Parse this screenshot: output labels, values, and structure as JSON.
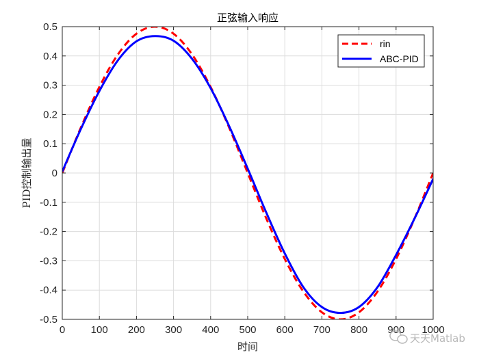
{
  "chart_data": {
    "type": "line",
    "title": "正弦输入响应",
    "xlabel": "时间",
    "ylabel": "PID控制输出量",
    "xlim": [
      0,
      1000
    ],
    "ylim": [
      -0.5,
      0.5
    ],
    "xticks": [
      0,
      100,
      200,
      300,
      400,
      500,
      600,
      700,
      800,
      900,
      1000
    ],
    "yticks": [
      -0.5,
      -0.4,
      -0.3,
      -0.2,
      -0.1,
      0,
      0.1,
      0.2,
      0.3,
      0.4,
      0.5
    ],
    "xtick_labels": [
      "0",
      "100",
      "200",
      "300",
      "400",
      "500",
      "600",
      "700",
      "800",
      "900",
      "1000"
    ],
    "ytick_labels": [
      "-0.5",
      "-0.4",
      "-0.3",
      "-0.2",
      "-0.1",
      "0",
      "0.1",
      "0.2",
      "0.3",
      "0.4",
      "0.5"
    ],
    "grid": true,
    "legend_position": "top-right",
    "series": [
      {
        "name": "rin",
        "color": "#ff0000",
        "style": "dashed",
        "x": [
          0,
          50,
          100,
          150,
          200,
          250,
          300,
          350,
          400,
          450,
          500,
          550,
          600,
          650,
          700,
          750,
          800,
          850,
          900,
          950,
          1000
        ],
        "y": [
          0,
          0.155,
          0.294,
          0.405,
          0.476,
          0.5,
          0.476,
          0.405,
          0.294,
          0.155,
          0,
          -0.155,
          -0.294,
          -0.405,
          -0.476,
          -0.5,
          -0.476,
          -0.405,
          -0.294,
          -0.155,
          0
        ]
      },
      {
        "name": "ABC-PID",
        "color": "#0000ff",
        "style": "solid",
        "x": [
          0,
          50,
          100,
          150,
          200,
          250,
          300,
          350,
          400,
          450,
          500,
          550,
          600,
          650,
          700,
          750,
          800,
          850,
          900,
          950,
          1000
        ],
        "y": [
          0.005,
          0.15,
          0.28,
          0.385,
          0.45,
          0.468,
          0.452,
          0.39,
          0.29,
          0.16,
          0.015,
          -0.135,
          -0.275,
          -0.39,
          -0.458,
          -0.478,
          -0.458,
          -0.39,
          -0.28,
          -0.155,
          -0.02
        ]
      }
    ]
  },
  "watermark": {
    "text": "天天Matlab",
    "icon": "wechat-icon"
  }
}
